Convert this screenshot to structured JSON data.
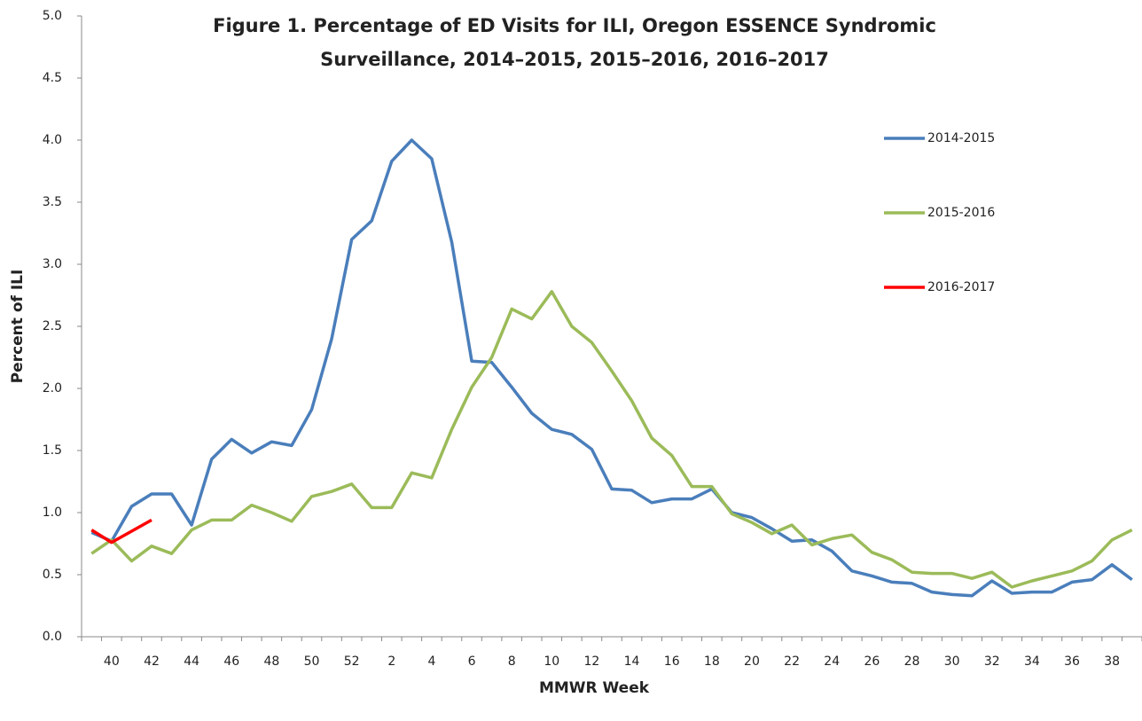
{
  "chart_data": {
    "type": "line",
    "title": [
      "Figure 1. Percentage of ED Visits for ILI, Oregon ESSENCE Syndromic",
      "Surveillance, 2014–2015, 2015–2016, 2016–2017"
    ],
    "x_label": "MMWR Week",
    "y_label": "Percent of ILI",
    "categories": [
      null,
      "40",
      null,
      "42",
      null,
      "44",
      null,
      "46",
      null,
      "48",
      null,
      "50",
      null,
      "52",
      null,
      "2",
      null,
      "4",
      null,
      "6",
      null,
      "8",
      null,
      "10",
      null,
      "12",
      null,
      "14",
      null,
      "16",
      null,
      "18",
      null,
      "20",
      null,
      "22",
      null,
      "24",
      null,
      "26",
      null,
      "28",
      null,
      "30",
      null,
      "32",
      null,
      "34",
      null,
      "36",
      null,
      "38",
      null
    ],
    "series": [
      {
        "name": "2014-2015",
        "color": "#4a7ebb",
        "values": [
          0.84,
          0.77,
          1.05,
          1.15,
          1.15,
          0.9,
          1.43,
          1.59,
          1.48,
          1.57,
          1.54,
          1.83,
          2.4,
          3.2,
          3.35,
          3.83,
          4.0,
          3.85,
          3.18,
          2.22,
          2.21,
          2.01,
          1.8,
          1.67,
          1.63,
          1.51,
          1.19,
          1.18,
          1.08,
          1.11,
          1.11,
          1.19,
          1.0,
          0.96,
          0.87,
          0.77,
          0.78,
          0.69,
          0.53,
          0.49,
          0.44,
          0.43,
          0.36,
          0.34,
          0.33,
          0.45,
          0.35,
          0.36,
          0.36,
          0.44,
          0.46,
          0.58,
          0.46
        ]
      },
      {
        "name": "2015-2016",
        "color": "#9bbb59",
        "values": [
          0.67,
          0.78,
          0.61,
          0.73,
          0.67,
          0.86,
          0.94,
          0.94,
          1.06,
          1.0,
          0.93,
          1.13,
          1.17,
          1.23,
          1.04,
          1.04,
          1.32,
          1.28,
          1.67,
          2.01,
          2.25,
          2.64,
          2.56,
          2.78,
          2.5,
          2.37,
          2.14,
          1.9,
          1.6,
          1.46,
          1.21,
          1.21,
          0.99,
          0.92,
          0.83,
          0.9,
          0.74,
          0.79,
          0.82,
          0.68,
          0.62,
          0.52,
          0.51,
          0.51,
          0.47,
          0.52,
          0.4,
          0.45,
          0.49,
          0.53,
          0.61,
          0.78,
          0.86
        ]
      },
      {
        "name": "2016-2017",
        "color": "#ff0000",
        "values": [
          0.86,
          0.76,
          0.85,
          0.94,
          null,
          null,
          null,
          null,
          null,
          null,
          null,
          null,
          null,
          null,
          null,
          null,
          null,
          null,
          null,
          null,
          null,
          null,
          null,
          null,
          null,
          null,
          null,
          null,
          null,
          null,
          null,
          null,
          null,
          null,
          null,
          null,
          null,
          null,
          null,
          null,
          null,
          null,
          null,
          null,
          null,
          null,
          null,
          null,
          null,
          null,
          null,
          null,
          null
        ]
      }
    ],
    "ylim": [
      0,
      5
    ],
    "yticks": [
      {
        "value": 0,
        "label": "0.0"
      },
      0.5,
      {
        "value": 1,
        "label": "1.0"
      },
      1.5,
      {
        "value": 2,
        "label": "2.0"
      },
      2.5,
      {
        "value": 3,
        "label": "3.0"
      },
      3.5,
      {
        "value": 4,
        "label": "4.0"
      },
      4.5,
      {
        "value": 5,
        "label": "5.0"
      }
    ],
    "grid": false,
    "legend": "right"
  }
}
